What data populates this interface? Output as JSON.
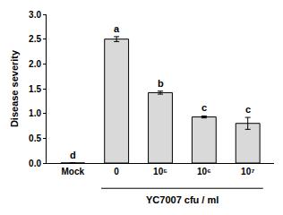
{
  "chart_data": {
    "type": "bar",
    "y_label": "Disease severity",
    "categories": [
      "Mock",
      "0",
      "10⁵",
      "10⁶",
      "10⁷"
    ],
    "values": [
      0,
      2.5,
      1.42,
      0.93,
      0.8
    ],
    "errors": [
      0,
      0.05,
      0.03,
      0.02,
      0.12
    ],
    "significance_letters": [
      "d",
      "a",
      "b",
      "c",
      "c"
    ],
    "group_label": {
      "text": "YC7007 cfu / ml",
      "categories": [
        "0",
        "10⁵",
        "10⁶",
        "10⁷"
      ]
    },
    "color": "#d9d9d9",
    "ylim": [
      0,
      3
    ],
    "yticks": [
      {
        "value": 0,
        "label": "0.0"
      },
      {
        "value": 0.5,
        "label": "0.5"
      },
      {
        "value": 1,
        "label": "1.0"
      },
      {
        "value": 1.5,
        "label": "1.5"
      },
      {
        "value": 2,
        "label": "2.0"
      },
      {
        "value": 2.5,
        "label": "2.5"
      },
      {
        "value": 3,
        "label": "3.0"
      }
    ],
    "grid": false
  }
}
